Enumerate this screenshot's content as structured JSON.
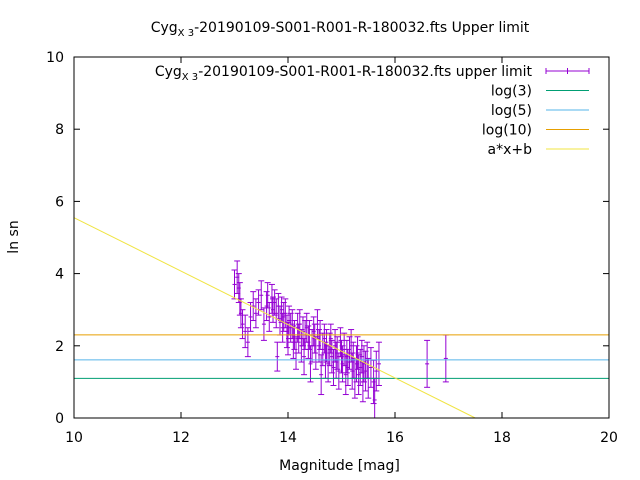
{
  "chart_data": {
    "type": "scatter",
    "title": {
      "main": "Cyg",
      "sub": "X 3",
      "rest": "-20190109-S001-R001-R-180032.fts Upper limit"
    },
    "xlabel": "Magnitude [mag]",
    "ylabel": "ln sn",
    "xlim": [
      10,
      20
    ],
    "ylim": [
      0,
      10
    ],
    "xticks": [
      "10",
      "12",
      "14",
      "16",
      "18",
      "20"
    ],
    "yticks": [
      "0",
      "2",
      "4",
      "6",
      "8",
      "10"
    ],
    "grid": false,
    "legend_position": "top-right",
    "series": [
      {
        "name": "Cyg X 3-20190109-S001-R001-R-180032.fts upper limit",
        "label_main": "Cyg",
        "label_sub": "X 3",
        "label_rest": "-20190109-S001-R001-R-180032.fts upper limit",
        "kind": "errorbars",
        "color": "#9400d3",
        "points": [
          [
            13.0,
            3.7,
            0.4
          ],
          [
            13.05,
            3.9,
            0.45
          ],
          [
            13.08,
            3.6,
            0.4
          ],
          [
            13.1,
            3.3,
            0.45
          ],
          [
            13.12,
            2.9,
            0.4
          ],
          [
            13.15,
            2.6,
            0.4
          ],
          [
            13.2,
            2.4,
            0.45
          ],
          [
            13.25,
            2.1,
            0.4
          ],
          [
            13.3,
            2.8,
            0.4
          ],
          [
            13.35,
            3.1,
            0.4
          ],
          [
            13.4,
            2.9,
            0.4
          ],
          [
            13.45,
            3.2,
            0.35
          ],
          [
            13.5,
            3.4,
            0.4
          ],
          [
            13.55,
            2.6,
            0.45
          ],
          [
            13.6,
            3.1,
            0.4
          ],
          [
            13.62,
            3.4,
            0.35
          ],
          [
            13.65,
            2.8,
            0.4
          ],
          [
            13.7,
            3.3,
            0.4
          ],
          [
            13.72,
            3.0,
            0.35
          ],
          [
            13.75,
            3.2,
            0.35
          ],
          [
            13.78,
            2.9,
            0.4
          ],
          [
            13.8,
            1.7,
            0.4
          ],
          [
            13.82,
            3.1,
            0.35
          ],
          [
            13.85,
            2.7,
            0.4
          ],
          [
            13.88,
            3.0,
            0.35
          ],
          [
            13.9,
            2.5,
            0.4
          ],
          [
            13.92,
            2.8,
            0.4
          ],
          [
            13.95,
            2.9,
            0.4
          ],
          [
            13.98,
            2.4,
            0.45
          ],
          [
            14.0,
            2.2,
            0.45
          ],
          [
            14.02,
            2.7,
            0.4
          ],
          [
            14.05,
            2.5,
            0.4
          ],
          [
            14.08,
            2.6,
            0.4
          ],
          [
            14.1,
            2.1,
            0.45
          ],
          [
            14.12,
            2.3,
            0.4
          ],
          [
            14.15,
            1.8,
            0.45
          ],
          [
            14.18,
            2.5,
            0.4
          ],
          [
            14.2,
            2.2,
            0.4
          ],
          [
            14.22,
            2.6,
            0.4
          ],
          [
            14.25,
            2.0,
            0.45
          ],
          [
            14.28,
            2.4,
            0.4
          ],
          [
            14.3,
            1.7,
            0.5
          ],
          [
            14.32,
            2.3,
            0.4
          ],
          [
            14.35,
            2.5,
            0.4
          ],
          [
            14.38,
            2.1,
            0.45
          ],
          [
            14.4,
            2.3,
            0.4
          ],
          [
            14.42,
            1.5,
            0.5
          ],
          [
            14.45,
            2.0,
            0.45
          ],
          [
            14.48,
            2.4,
            0.4
          ],
          [
            14.5,
            2.2,
            0.4
          ],
          [
            14.52,
            1.8,
            0.45
          ],
          [
            14.55,
            2.6,
            0.4
          ],
          [
            14.58,
            2.0,
            0.45
          ],
          [
            14.6,
            2.3,
            0.4
          ],
          [
            14.62,
            1.2,
            0.55
          ],
          [
            14.65,
            1.9,
            0.45
          ],
          [
            14.68,
            2.2,
            0.4
          ],
          [
            14.7,
            1.6,
            0.5
          ],
          [
            14.72,
            2.0,
            0.45
          ],
          [
            14.75,
            1.5,
            0.5
          ],
          [
            14.78,
            1.9,
            0.45
          ],
          [
            14.8,
            2.2,
            0.4
          ],
          [
            14.82,
            1.7,
            0.45
          ],
          [
            14.85,
            1.4,
            0.5
          ],
          [
            14.88,
            2.0,
            0.45
          ],
          [
            14.9,
            1.6,
            0.5
          ],
          [
            14.92,
            1.8,
            0.45
          ],
          [
            14.95,
            1.3,
            0.5
          ],
          [
            14.98,
            2.1,
            0.4
          ],
          [
            15.0,
            1.7,
            0.45
          ],
          [
            15.02,
            1.5,
            0.5
          ],
          [
            15.05,
            1.9,
            0.45
          ],
          [
            15.08,
            1.2,
            0.55
          ],
          [
            15.1,
            1.7,
            0.45
          ],
          [
            15.12,
            1.4,
            0.5
          ],
          [
            15.15,
            1.8,
            0.45
          ],
          [
            15.18,
            2.0,
            0.45
          ],
          [
            15.2,
            1.3,
            0.5
          ],
          [
            15.22,
            1.6,
            0.5
          ],
          [
            15.25,
            1.1,
            0.55
          ],
          [
            15.28,
            1.5,
            0.5
          ],
          [
            15.3,
            1.8,
            0.45
          ],
          [
            15.32,
            1.2,
            0.55
          ],
          [
            15.35,
            1.4,
            0.5
          ],
          [
            15.38,
            1.7,
            0.45
          ],
          [
            15.4,
            1.0,
            0.55
          ],
          [
            15.42,
            1.5,
            0.5
          ],
          [
            15.45,
            1.3,
            0.55
          ],
          [
            15.48,
            1.6,
            0.5
          ],
          [
            15.5,
            1.1,
            0.55
          ],
          [
            15.55,
            1.4,
            0.55
          ],
          [
            15.6,
            1.0,
            0.6
          ],
          [
            15.62,
            0.5,
            0.6
          ],
          [
            15.65,
            1.3,
            0.55
          ],
          [
            15.7,
            1.5,
            0.6
          ],
          [
            16.6,
            1.5,
            0.65
          ],
          [
            16.95,
            1.65,
            0.65
          ]
        ]
      },
      {
        "name": "log(3)",
        "kind": "hline",
        "y": 1.0986,
        "color": "#009e73"
      },
      {
        "name": "log(5)",
        "kind": "hline",
        "y": 1.6094,
        "color": "#56b4e9"
      },
      {
        "name": "log(10)",
        "kind": "hline",
        "y": 2.3026,
        "color": "#e69f00"
      },
      {
        "name": "a*x+b",
        "kind": "fitline",
        "x": [
          10,
          17.5
        ],
        "y": [
          5.55,
          0
        ],
        "color": "#f0e442"
      }
    ]
  }
}
